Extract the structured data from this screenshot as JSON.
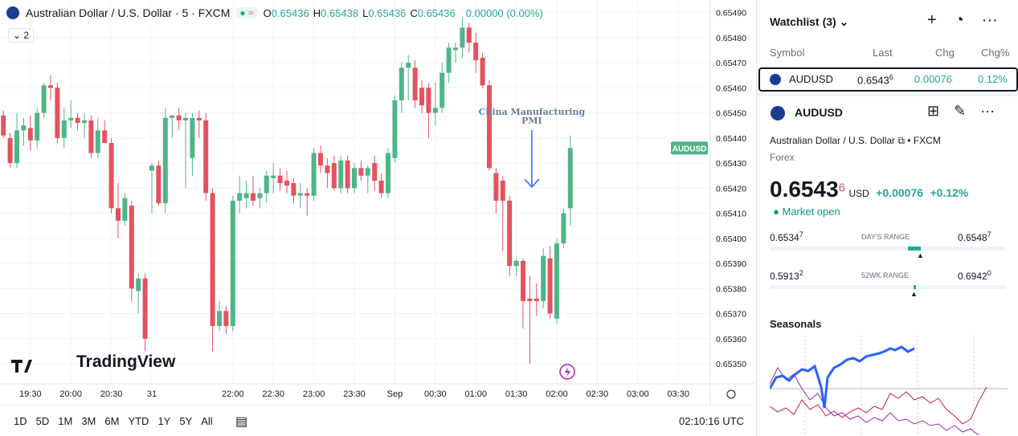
{
  "header": {
    "title": "Australian Dollar / U.S. Dollar · 5 · FXCM",
    "indicators": "2",
    "ohlc": [
      {
        "k": "O",
        "v": "0.65436"
      },
      {
        "k": "H",
        "v": "0.65438"
      },
      {
        "k": "L",
        "v": "0.65436"
      },
      {
        "k": "C",
        "v": "0.65436"
      }
    ],
    "change": "0.00000 (0.00%)",
    "watermark": "TradingView"
  },
  "chart_data": {
    "type": "candlestick",
    "open": [
      0.65449,
      0.6544,
      0.6543,
      0.65443,
      0.65444,
      0.65439,
      0.6545,
      0.65461,
      0.6546,
      0.6544,
      0.65447,
      0.65448,
      0.65446,
      0.65447,
      0.65434,
      0.65443,
      0.65438,
      0.65412,
      0.65407,
      0.65413,
      0.65379,
      0.65384,
      0.65427,
      0.65429,
      0.65414,
      0.65448,
      0.65449,
      0.65447,
      0.65432,
      0.65448,
      0.65447,
      0.65418,
      0.65365,
      0.65371,
      0.65365,
      0.65415,
      0.65416,
      0.65418,
      0.65416,
      0.65418,
      0.65424,
      0.65425,
      0.65423,
      0.65422,
      0.65417,
      0.65418,
      0.65417,
      0.65434,
      0.65429,
      0.6543,
      0.6542,
      0.65431,
      0.6542,
      0.65428,
      0.65425,
      0.6543,
      0.65423,
      0.65418,
      0.65432,
      0.65455,
      0.65468,
      0.65468,
      0.6546,
      0.6546,
      0.6545,
      0.65452,
      0.65466,
      0.65475,
      0.65476,
      0.65484,
      0.65478,
      0.65472,
      0.65461,
      0.65426,
      0.65423,
      0.65415,
      0.65389,
      0.65391,
      0.65376,
      0.65376,
      0.65375,
      0.65392,
      0.65368,
      0.65398,
      0.65412
    ],
    "high": [
      0.65451,
      0.65442,
      0.6545,
      0.65448,
      0.65449,
      0.65452,
      0.65462,
      0.65465,
      0.65462,
      0.65452,
      0.65455,
      0.6545,
      0.6545,
      0.65449,
      0.65448,
      0.65447,
      0.6544,
      0.65422,
      0.65418,
      0.65415,
      0.65386,
      0.65386,
      0.6543,
      0.65431,
      0.65452,
      0.65449,
      0.65452,
      0.6545,
      0.6545,
      0.65451,
      0.6545,
      0.6542,
      0.65375,
      0.65373,
      0.65417,
      0.65425,
      0.65423,
      0.65425,
      0.6542,
      0.65427,
      0.6543,
      0.65428,
      0.65427,
      0.65424,
      0.65422,
      0.6542,
      0.65436,
      0.65437,
      0.65432,
      0.65433,
      0.65433,
      0.65433,
      0.6543,
      0.65431,
      0.65429,
      0.65433,
      0.65426,
      0.65436,
      0.65457,
      0.6547,
      0.65473,
      0.65471,
      0.65463,
      0.65462,
      0.65462,
      0.6547,
      0.65478,
      0.65478,
      0.65488,
      0.65486,
      0.65482,
      0.65474,
      0.65463,
      0.65428,
      0.65425,
      0.65417,
      0.65392,
      0.65392,
      0.65385,
      0.65382,
      0.65396,
      0.65397,
      0.654,
      0.65412,
      0.65441
    ],
    "low": [
      0.6544,
      0.65428,
      0.65428,
      0.65437,
      0.65435,
      0.65436,
      0.65448,
      0.65455,
      0.65438,
      0.65436,
      0.65444,
      0.65443,
      0.6544,
      0.65432,
      0.65432,
      0.65438,
      0.6541,
      0.654,
      0.65405,
      0.65375,
      0.6537,
      0.65355,
      0.6541,
      0.65413,
      0.6541,
      0.6544,
      0.65443,
      0.6542,
      0.65425,
      0.6544,
      0.65415,
      0.65355,
      0.65363,
      0.65362,
      0.65363,
      0.6541,
      0.65412,
      0.65413,
      0.65412,
      0.65414,
      0.65418,
      0.65419,
      0.65418,
      0.65414,
      0.65412,
      0.65409,
      0.65415,
      0.65426,
      0.6542,
      0.65419,
      0.65418,
      0.65418,
      0.65418,
      0.65423,
      0.65418,
      0.65419,
      0.65416,
      0.65416,
      0.6543,
      0.6545,
      0.65455,
      0.65452,
      0.6545,
      0.6544,
      0.65445,
      0.6545,
      0.65462,
      0.6547,
      0.65472,
      0.65474,
      0.65466,
      0.6546,
      0.65427,
      0.6541,
      0.65395,
      0.65385,
      0.65385,
      0.65364,
      0.6535,
      0.65369,
      0.65372,
      0.65368,
      0.65366,
      0.65396,
      0.65405
    ],
    "close": [
      0.65441,
      0.6543,
      0.65443,
      0.65445,
      0.65439,
      0.6545,
      0.65461,
      0.6546,
      0.6544,
      0.65447,
      0.65448,
      0.65446,
      0.65447,
      0.65434,
      0.65443,
      0.65438,
      0.65412,
      0.65407,
      0.65416,
      0.6538,
      0.65384,
      0.6536,
      0.65429,
      0.65414,
      0.65448,
      0.65449,
      0.65447,
      0.65448,
      0.65448,
      0.65447,
      0.65418,
      0.65365,
      0.65371,
      0.65365,
      0.65415,
      0.65418,
      0.65418,
      0.65415,
      0.65418,
      0.65425,
      0.65425,
      0.65422,
      0.65421,
      0.65417,
      0.65418,
      0.65417,
      0.65434,
      0.65429,
      0.65426,
      0.6542,
      0.65431,
      0.6542,
      0.65428,
      0.65425,
      0.65428,
      0.65423,
      0.65418,
      0.65434,
      0.65455,
      0.65468,
      0.6547,
      0.65455,
      0.65453,
      0.6545,
      0.65452,
      0.65466,
      0.65476,
      0.65476,
      0.65484,
      0.65478,
      0.65471,
      0.65461,
      0.65428,
      0.65415,
      0.65415,
      0.65389,
      0.65391,
      0.65375,
      0.65375,
      0.65375,
      0.65393,
      0.6537,
      0.65398,
      0.6541,
      0.65436
    ],
    "up_color": "#50b487",
    "down_color": "#e4525e",
    "xlim": [
      -0.5,
      104.5
    ],
    "xticks": [
      {
        "value": 4,
        "label": "19:30"
      },
      {
        "value": 10,
        "label": "20:00"
      },
      {
        "value": 16,
        "label": "20:30"
      },
      {
        "value": 22,
        "label": "31"
      },
      {
        "value": 34,
        "label": "22:00"
      },
      {
        "value": 40,
        "label": "22:30"
      },
      {
        "value": 46,
        "label": "23:00"
      },
      {
        "value": 52,
        "label": "23:30"
      },
      {
        "value": 58,
        "label": "Sep"
      },
      {
        "value": 64,
        "label": "00:30"
      },
      {
        "value": 70,
        "label": "01:00"
      },
      {
        "value": 76,
        "label": "01:30"
      },
      {
        "value": 82,
        "label": "02:00"
      },
      {
        "value": 88,
        "label": "02:30"
      },
      {
        "value": 94,
        "label": "03:00"
      },
      {
        "value": 100,
        "label": "03:30"
      }
    ],
    "ylim": [
      0.65342,
      0.65495
    ],
    "yticks": [
      {
        "value": 0.6549,
        "label": "0.65490"
      },
      {
        "value": 0.6548,
        "label": "0.65480"
      },
      {
        "value": 0.6547,
        "label": "0.65470"
      },
      {
        "value": 0.6546,
        "label": "0.65460"
      },
      {
        "value": 0.6545,
        "label": "0.65450"
      },
      {
        "value": 0.6544,
        "label": "0.65440"
      },
      {
        "value": 0.6543,
        "label": "0.65430"
      },
      {
        "value": 0.6542,
        "label": "0.65420"
      },
      {
        "value": 0.6541,
        "label": "0.65410"
      },
      {
        "value": 0.654,
        "label": "0.65400"
      },
      {
        "value": 0.6539,
        "label": "0.65390"
      },
      {
        "value": 0.6538,
        "label": "0.65380"
      },
      {
        "value": 0.6537,
        "label": "0.65370"
      },
      {
        "value": 0.6536,
        "label": "0.65360"
      },
      {
        "value": 0.6535,
        "label": "0.65350"
      }
    ],
    "grid": true,
    "last_price_label": "AUDUSD",
    "annotation": [
      "China Manufacturing",
      "PMI"
    ]
  },
  "toolbar": {
    "ranges": [
      "1D",
      "5D",
      "1M",
      "3M",
      "6M",
      "YTD",
      "1Y",
      "5Y",
      "All"
    ],
    "clock": "02:10:16 UTC"
  },
  "watchlist": {
    "title": "Watchlist (3)",
    "columns": [
      "Symbol",
      "Last",
      "Chg",
      "Chg%"
    ],
    "rows": [
      {
        "symbol": "AUDUSD",
        "last": "0.6543",
        "last_pip": "6",
        "chg": "0.00076",
        "chg_pct": "0.12%"
      }
    ]
  },
  "details": {
    "symbol": "AUDUSD",
    "name": "Australian Dollar / U.S. Dollar",
    "exchange": "FXCM",
    "type": "Forex",
    "price": "0.6543",
    "price_pip": "6",
    "currency": "USD",
    "change": "+0.00076",
    "change_pct": "+0.12%",
    "status": "Market open",
    "ranges": [
      {
        "low": "0.6534",
        "low_pip": "7",
        "label": "DAY'S RANGE",
        "high": "0.6548",
        "high_pip": "7"
      },
      {
        "low": "0.5913",
        "low_pip": "2",
        "label": "52WK RANGE",
        "high": "0.6942",
        "high_pip": "0"
      }
    ],
    "seasonals": "Seasonals"
  }
}
